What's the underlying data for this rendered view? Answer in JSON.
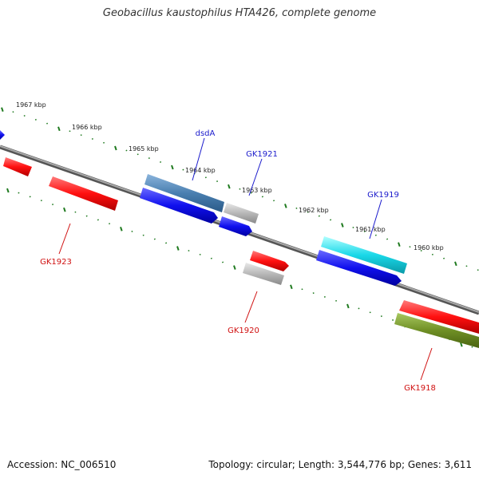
{
  "title": "Geobacillus kaustophilus HTA426, complete genome",
  "footer": {
    "accession": "Accession: NC_006510",
    "summary": "Topology: circular; Length: 3,544,776 bp; Genes: 3,611"
  },
  "colors": {
    "backbone": "#8a8a8a",
    "ticks": "#1f7a1f",
    "label_blue": "#1a1acc",
    "label_red": "#d01010",
    "cds_red": "#ff1010",
    "cds_blue": "#1010ee",
    "cds_grey": "#b8b8b8",
    "cds_steel": "#4a7fb0",
    "cds_cyan": "#19d8e8",
    "cds_olive": "#6f8f25"
  },
  "kbp_labels": [
    "1967 kbp",
    "1966 kbp",
    "1965 kbp",
    "1964 kbp",
    "1963 kbp",
    "1962 kbp",
    "1961 kbp",
    "1960 kbp"
  ],
  "gene_labels": [
    {
      "name": "dsdA",
      "color": "#1a1acc"
    },
    {
      "name": "GK1921",
      "color": "#1a1acc"
    },
    {
      "name": "GK1919",
      "color": "#1a1acc"
    },
    {
      "name": "GK1923",
      "color": "#d01010"
    },
    {
      "name": "GK1920",
      "color": "#d01010"
    },
    {
      "name": "GK1918",
      "color": "#d01010"
    }
  ]
}
